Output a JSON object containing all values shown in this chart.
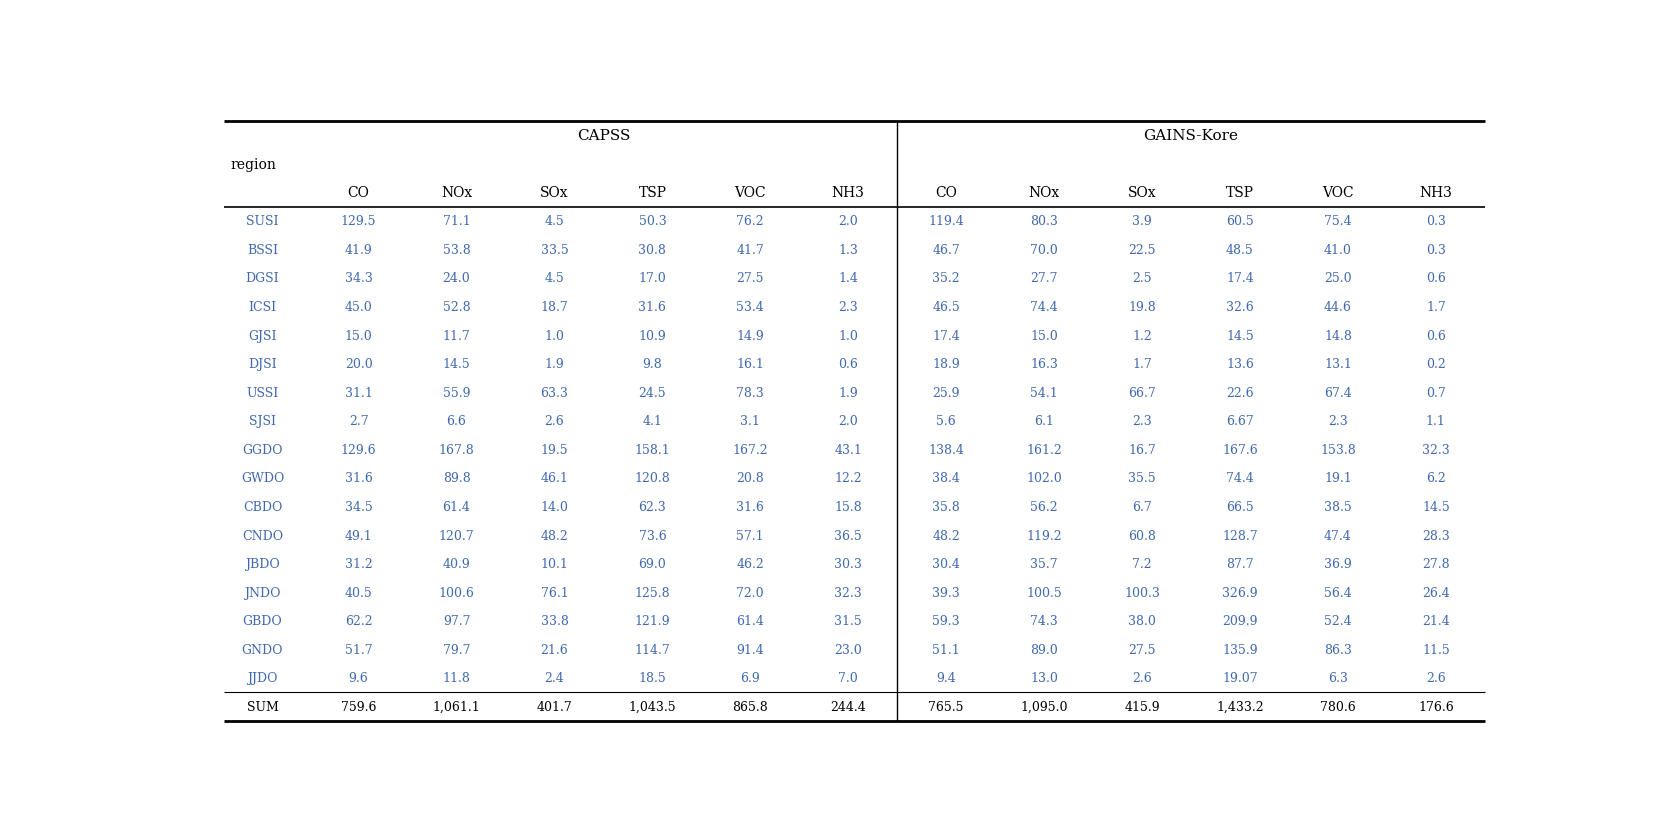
{
  "title_capss": "CAPSS",
  "title_gains": "GAINS-Kore",
  "col_header_region": "region",
  "col_headers": [
    "CO",
    "NOx",
    "SOx",
    "TSP",
    "VOC",
    "NH3"
  ],
  "regions": [
    "SUSI",
    "BSSI",
    "DGSI",
    "ICSI",
    "GJSI",
    "DJSI",
    "USSI",
    "SJSI",
    "GGDO",
    "GWDO",
    "CBDO",
    "CNDO",
    "JBDO",
    "JNDO",
    "GBDO",
    "GNDO",
    "JJDO",
    "SUM"
  ],
  "capss": [
    [
      129.5,
      71.1,
      4.5,
      50.3,
      76.2,
      2.0
    ],
    [
      41.9,
      53.8,
      33.5,
      30.8,
      41.7,
      1.3
    ],
    [
      34.3,
      24.0,
      4.5,
      17.0,
      27.5,
      1.4
    ],
    [
      45.0,
      52.8,
      18.7,
      31.6,
      53.4,
      2.3
    ],
    [
      15.0,
      11.7,
      1.0,
      10.9,
      14.9,
      1.0
    ],
    [
      20.0,
      14.5,
      1.9,
      9.8,
      16.1,
      0.6
    ],
    [
      31.1,
      55.9,
      63.3,
      24.5,
      78.3,
      1.9
    ],
    [
      2.7,
      6.6,
      2.6,
      4.1,
      3.1,
      2.0
    ],
    [
      129.6,
      167.8,
      19.5,
      158.1,
      167.2,
      43.1
    ],
    [
      31.6,
      89.8,
      46.1,
      120.8,
      20.8,
      12.2
    ],
    [
      34.5,
      61.4,
      14.0,
      62.3,
      31.6,
      15.8
    ],
    [
      49.1,
      120.7,
      48.2,
      73.6,
      57.1,
      36.5
    ],
    [
      31.2,
      40.9,
      10.1,
      69.0,
      46.2,
      30.3
    ],
    [
      40.5,
      100.6,
      76.1,
      125.8,
      72.0,
      32.3
    ],
    [
      62.2,
      97.7,
      33.8,
      121.9,
      61.4,
      31.5
    ],
    [
      51.7,
      79.7,
      21.6,
      114.7,
      91.4,
      23.0
    ],
    [
      9.6,
      11.8,
      2.4,
      18.5,
      6.9,
      7.0
    ],
    [
      759.6,
      1061.1,
      401.7,
      1043.5,
      865.8,
      244.4
    ]
  ],
  "gains": [
    [
      119.4,
      80.3,
      3.9,
      60.5,
      75.4,
      0.3
    ],
    [
      46.7,
      70.0,
      22.5,
      48.5,
      41.0,
      0.3
    ],
    [
      35.2,
      27.7,
      2.5,
      17.4,
      25.0,
      0.6
    ],
    [
      46.5,
      74.4,
      19.8,
      32.6,
      44.6,
      1.7
    ],
    [
      17.4,
      15.0,
      1.2,
      14.5,
      14.8,
      0.6
    ],
    [
      18.9,
      16.3,
      1.7,
      13.6,
      13.1,
      0.2
    ],
    [
      25.9,
      54.1,
      66.7,
      22.6,
      67.4,
      0.7
    ],
    [
      5.6,
      6.1,
      2.3,
      6.67,
      2.3,
      1.1
    ],
    [
      138.4,
      161.2,
      16.7,
      167.6,
      153.8,
      32.3
    ],
    [
      38.4,
      102.0,
      35.5,
      74.4,
      19.1,
      6.2
    ],
    [
      35.8,
      56.2,
      6.7,
      66.5,
      38.5,
      14.5
    ],
    [
      48.2,
      119.2,
      60.8,
      128.7,
      47.4,
      28.3
    ],
    [
      30.4,
      35.7,
      7.2,
      87.7,
      36.9,
      27.8
    ],
    [
      39.3,
      100.5,
      100.3,
      326.9,
      56.4,
      26.4
    ],
    [
      59.3,
      74.3,
      38.0,
      209.9,
      52.4,
      21.4
    ],
    [
      51.1,
      89.0,
      27.5,
      135.9,
      86.3,
      11.5
    ],
    [
      9.4,
      13.0,
      2.6,
      19.07,
      6.3,
      2.6
    ],
    [
      765.5,
      1095.0,
      415.9,
      1433.2,
      780.6,
      176.6
    ]
  ],
  "capss_display": [
    [
      "129.5",
      "71.1",
      "4.5",
      "50.3",
      "76.2",
      "2.0"
    ],
    [
      "41.9",
      "53.8",
      "33.5",
      "30.8",
      "41.7",
      "1.3"
    ],
    [
      "34.3",
      "24.0",
      "4.5",
      "17.0",
      "27.5",
      "1.4"
    ],
    [
      "45.0",
      "52.8",
      "18.7",
      "31.6",
      "53.4",
      "2.3"
    ],
    [
      "15.0",
      "11.7",
      "1.0",
      "10.9",
      "14.9",
      "1.0"
    ],
    [
      "20.0",
      "14.5",
      "1.9",
      "9.8",
      "16.1",
      "0.6"
    ],
    [
      "31.1",
      "55.9",
      "63.3",
      "24.5",
      "78.3",
      "1.9"
    ],
    [
      "2.7",
      "6.6",
      "2.6",
      "4.1",
      "3.1",
      "2.0"
    ],
    [
      "129.6",
      "167.8",
      "19.5",
      "158.1",
      "167.2",
      "43.1"
    ],
    [
      "31.6",
      "89.8",
      "46.1",
      "120.8",
      "20.8",
      "12.2"
    ],
    [
      "34.5",
      "61.4",
      "14.0",
      "62.3",
      "31.6",
      "15.8"
    ],
    [
      "49.1",
      "120.7",
      "48.2",
      "73.6",
      "57.1",
      "36.5"
    ],
    [
      "31.2",
      "40.9",
      "10.1",
      "69.0",
      "46.2",
      "30.3"
    ],
    [
      "40.5",
      "100.6",
      "76.1",
      "125.8",
      "72.0",
      "32.3"
    ],
    [
      "62.2",
      "97.7",
      "33.8",
      "121.9",
      "61.4",
      "31.5"
    ],
    [
      "51.7",
      "79.7",
      "21.6",
      "114.7",
      "91.4",
      "23.0"
    ],
    [
      "9.6",
      "11.8",
      "2.4",
      "18.5",
      "6.9",
      "7.0"
    ],
    [
      "759.6",
      "1,061.1",
      "401.7",
      "1,043.5",
      "865.8",
      "244.4"
    ]
  ],
  "gains_display": [
    [
      "119.4",
      "80.3",
      "3.9",
      "60.5",
      "75.4",
      "0.3"
    ],
    [
      "46.7",
      "70.0",
      "22.5",
      "48.5",
      "41.0",
      "0.3"
    ],
    [
      "35.2",
      "27.7",
      "2.5",
      "17.4",
      "25.0",
      "0.6"
    ],
    [
      "46.5",
      "74.4",
      "19.8",
      "32.6",
      "44.6",
      "1.7"
    ],
    [
      "17.4",
      "15.0",
      "1.2",
      "14.5",
      "14.8",
      "0.6"
    ],
    [
      "18.9",
      "16.3",
      "1.7",
      "13.6",
      "13.1",
      "0.2"
    ],
    [
      "25.9",
      "54.1",
      "66.7",
      "22.6",
      "67.4",
      "0.7"
    ],
    [
      "5.6",
      "6.1",
      "2.3",
      "6.67",
      "2.3",
      "1.1"
    ],
    [
      "138.4",
      "161.2",
      "16.7",
      "167.6",
      "153.8",
      "32.3"
    ],
    [
      "38.4",
      "102.0",
      "35.5",
      "74.4",
      "19.1",
      "6.2"
    ],
    [
      "35.8",
      "56.2",
      "6.7",
      "66.5",
      "38.5",
      "14.5"
    ],
    [
      "48.2",
      "119.2",
      "60.8",
      "128.7",
      "47.4",
      "28.3"
    ],
    [
      "30.4",
      "35.7",
      "7.2",
      "87.7",
      "36.9",
      "27.8"
    ],
    [
      "39.3",
      "100.5",
      "100.3",
      "326.9",
      "56.4",
      "26.4"
    ],
    [
      "59.3",
      "74.3",
      "38.0",
      "209.9",
      "52.4",
      "21.4"
    ],
    [
      "51.1",
      "89.0",
      "27.5",
      "135.9",
      "86.3",
      "11.5"
    ],
    [
      "9.4",
      "13.0",
      "2.6",
      "19.07",
      "6.3",
      "2.6"
    ],
    [
      "765.5",
      "1,095.0",
      "415.9",
      "1,433.2",
      "780.6",
      "176.6"
    ]
  ],
  "text_color_blue": "#4169b0",
  "text_color_black": "#000000",
  "background_color": "#ffffff",
  "line_color": "#000000",
  "font_size_data": 9,
  "font_size_header": 10,
  "font_size_title": 11
}
